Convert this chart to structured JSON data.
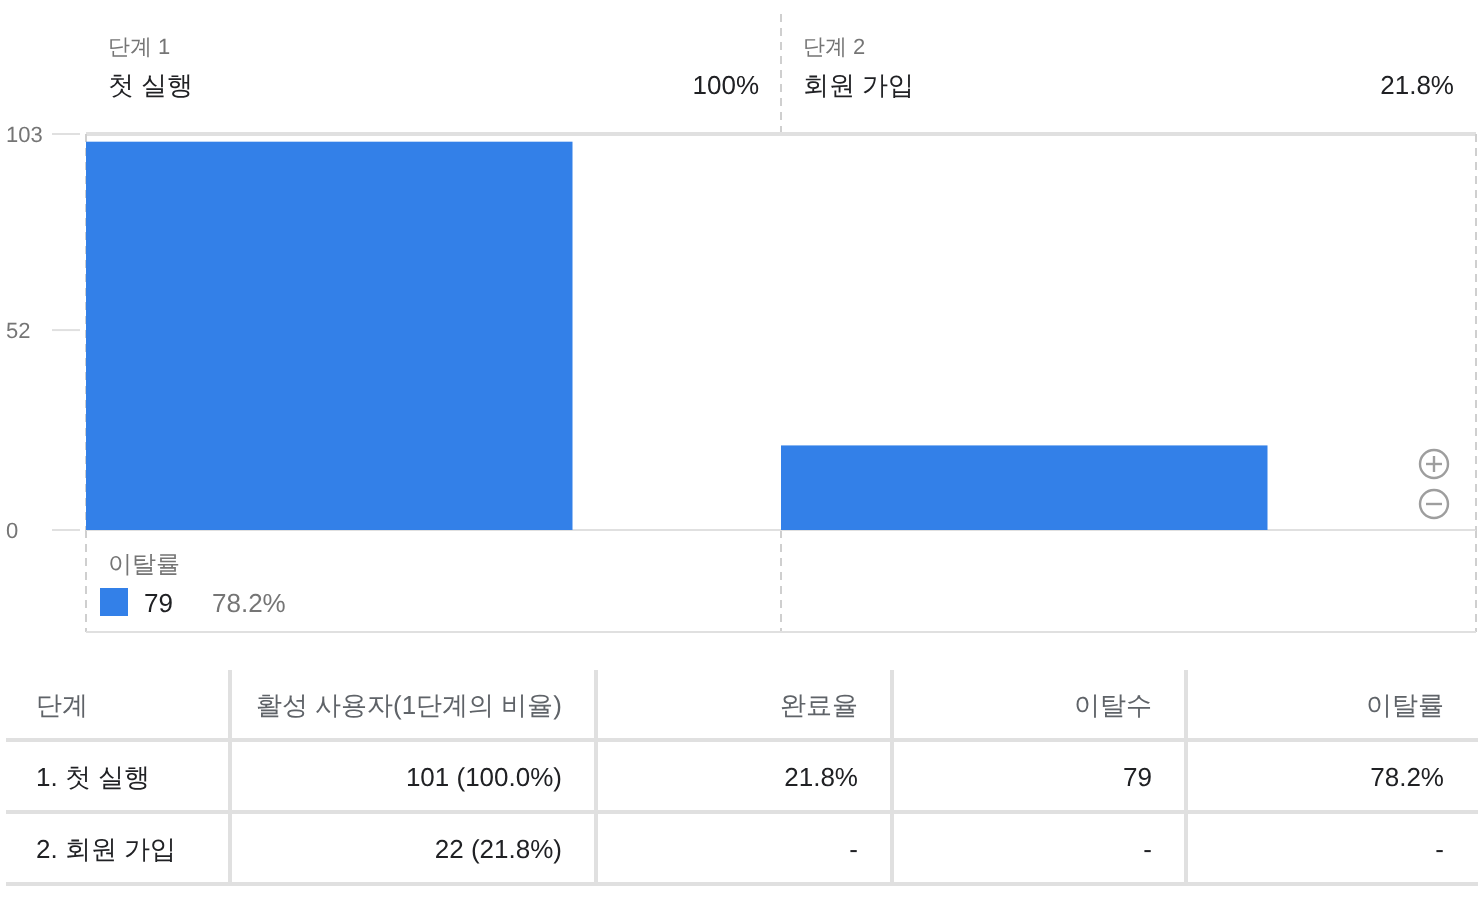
{
  "chart_data": [
    {
      "type": "bar",
      "categories": [
        "첫 실행",
        "회원 가입"
      ],
      "values": [
        101,
        22
      ],
      "color": "#3380e8",
      "ylim": [
        0,
        103
      ],
      "yticks": [
        0,
        52,
        103
      ],
      "annotations": [
        "단계 1",
        "단계 2",
        "100%",
        "21.8%",
        "이탈률",
        "79",
        "78.2%"
      ]
    },
    {
      "type": "other",
      "categories": [
        "단계",
        "활성 사용자(1단계의 비율)",
        "완료율",
        "이탈수",
        "이탈률"
      ],
      "y_categories": [
        "1. 첫 실행",
        "2. 회원 가입"
      ],
      "cell_labels": [
        [
          "101 (100.0%)",
          "21.8%",
          "79",
          "78.2%"
        ],
        [
          "22 (21.8%)",
          "-",
          "-",
          "-"
        ]
      ]
    }
  ]
}
